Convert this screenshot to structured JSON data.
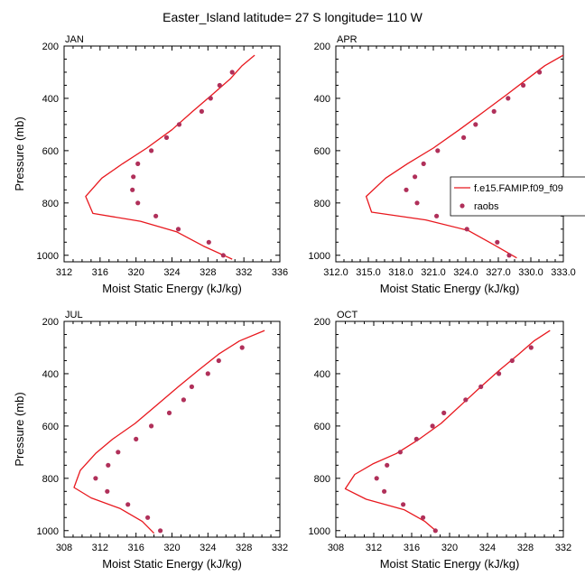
{
  "title": "Easter_Island  latitude= 27 S longitude= 110 W",
  "colors": {
    "model": "#e8181e",
    "obs": "#b0305a",
    "axis": "#000000"
  },
  "chart_data": [
    {
      "type": "line",
      "panel_label": "JAN",
      "xlabel": "Moist Static Energy (kJ/kg)",
      "ylabel": "Pressure (mb)",
      "xlim": [
        312,
        336
      ],
      "ylim": [
        200,
        1025
      ],
      "y_reversed": true,
      "xticks": [
        312,
        316,
        320,
        324,
        328,
        332,
        336
      ],
      "xtick_labels": [
        "312",
        "316",
        "320",
        "324",
        "328",
        "332",
        "336"
      ],
      "yticks": [
        200,
        400,
        600,
        800,
        1000
      ],
      "ytick_labels": [
        "200",
        "400",
        "600",
        "800",
        "1000"
      ],
      "series": [
        {
          "name": "f.e15.FAMIP.f09_f09",
          "kind": "line",
          "x": [
            333.2,
            331.8,
            330.5,
            328.5,
            326.3,
            324.0,
            321.2,
            318.5,
            316.2,
            314.4,
            315.2,
            320.5,
            324.5,
            327.5,
            330.7
          ],
          "y": [
            235,
            275,
            325,
            385,
            450,
            520,
            590,
            650,
            705,
            775,
            840,
            870,
            910,
            965,
            1015
          ]
        },
        {
          "name": "raobs",
          "kind": "scatter",
          "x": [
            330.7,
            329.3,
            328.3,
            327.3,
            324.8,
            323.4,
            321.7,
            320.2,
            319.7,
            319.6,
            320.2,
            322.2,
            324.7,
            328.1,
            329.7
          ],
          "y": [
            300,
            350,
            400,
            450,
            500,
            550,
            600,
            650,
            700,
            750,
            800,
            850,
            900,
            950,
            1000
          ]
        }
      ]
    },
    {
      "type": "line",
      "panel_label": "APR",
      "xlabel": "Moist Static Energy (kJ/kg)",
      "ylabel": "",
      "xlim": [
        312.0,
        333.0
      ],
      "ylim": [
        200,
        1025
      ],
      "y_reversed": true,
      "xticks": [
        312,
        315,
        318,
        321,
        324,
        327,
        330,
        333
      ],
      "xtick_labels": [
        "312.0",
        "315.0",
        "318.0",
        "321.0",
        "324.0",
        "327.0",
        "330.0",
        "333.0"
      ],
      "yticks": [
        200,
        400,
        600,
        800,
        1000
      ],
      "ytick_labels": [
        "200",
        "400",
        "600",
        "800",
        "1000"
      ],
      "legend": {
        "placement": "right",
        "entries": [
          "f.e15.FAMIP.f09_f09",
          "raobs"
        ]
      },
      "series": [
        {
          "name": "f.e15.FAMIP.f09_f09",
          "kind": "line",
          "x": [
            333.0,
            331.3,
            329.7,
            327.8,
            325.7,
            323.4,
            321.0,
            318.6,
            316.6,
            314.8,
            315.3,
            320.3,
            324.2,
            326.6,
            328.7
          ],
          "y": [
            235,
            275,
            325,
            385,
            450,
            520,
            590,
            650,
            705,
            775,
            835,
            865,
            905,
            960,
            1010
          ]
        },
        {
          "name": "raobs",
          "kind": "scatter",
          "x": [
            330.8,
            329.3,
            327.9,
            326.6,
            324.9,
            323.8,
            321.4,
            320.1,
            319.3,
            318.5,
            319.5,
            321.3,
            324.1,
            326.9,
            328.0
          ],
          "y": [
            300,
            350,
            400,
            450,
            500,
            550,
            600,
            650,
            700,
            750,
            800,
            850,
            900,
            950,
            1000
          ]
        }
      ]
    },
    {
      "type": "line",
      "panel_label": "JUL",
      "xlabel": "Moist Static Energy (kJ/kg)",
      "ylabel": "Pressure (mb)",
      "xlim": [
        308,
        332
      ],
      "ylim": [
        200,
        1025
      ],
      "y_reversed": true,
      "xticks": [
        308,
        312,
        316,
        320,
        324,
        328,
        332
      ],
      "xtick_labels": [
        "308",
        "312",
        "316",
        "320",
        "324",
        "328",
        "332"
      ],
      "yticks": [
        200,
        400,
        600,
        800,
        1000
      ],
      "ytick_labels": [
        "200",
        "400",
        "600",
        "800",
        "1000"
      ],
      "series": [
        {
          "name": "f.e15.FAMIP.f09_f09",
          "kind": "line",
          "x": [
            330.3,
            327.5,
            325.2,
            323.0,
            320.7,
            318.3,
            315.9,
            313.4,
            311.5,
            309.8,
            309.1,
            311.0,
            314.2,
            316.7,
            318.0
          ],
          "y": [
            235,
            275,
            325,
            385,
            450,
            520,
            590,
            650,
            705,
            770,
            835,
            875,
            915,
            965,
            1010
          ]
        },
        {
          "name": "raobs",
          "kind": "scatter",
          "x": [
            327.8,
            325.2,
            324.0,
            322.2,
            321.3,
            319.7,
            317.7,
            316.0,
            314.0,
            312.9,
            311.5,
            312.8,
            315.1,
            317.3,
            318.7
          ],
          "y": [
            300,
            350,
            400,
            450,
            500,
            550,
            600,
            650,
            700,
            750,
            800,
            850,
            900,
            950,
            1000
          ]
        }
      ]
    },
    {
      "type": "line",
      "panel_label": "OCT",
      "xlabel": "Moist Static Energy (kJ/kg)",
      "ylabel": "",
      "xlim": [
        308,
        332
      ],
      "ylim": [
        200,
        1025
      ],
      "y_reversed": true,
      "xticks": [
        308,
        312,
        316,
        320,
        324,
        328,
        332
      ],
      "xtick_labels": [
        "308",
        "312",
        "316",
        "320",
        "324",
        "328",
        "332"
      ],
      "yticks": [
        200,
        400,
        600,
        800,
        1000
      ],
      "ytick_labels": [
        "200",
        "400",
        "600",
        "800",
        "1000"
      ],
      "series": [
        {
          "name": "f.e15.FAMIP.f09_f09",
          "kind": "line",
          "x": [
            330.6,
            328.9,
            327.3,
            325.3,
            323.3,
            321.2,
            319.1,
            316.8,
            314.4,
            311.9,
            310.0,
            309.0,
            311.2,
            315.2,
            317.4,
            318.7
          ],
          "y": [
            235,
            275,
            325,
            385,
            450,
            520,
            590,
            650,
            705,
            745,
            785,
            840,
            880,
            920,
            965,
            1005
          ]
        },
        {
          "name": "raobs",
          "kind": "scatter",
          "x": [
            328.6,
            326.6,
            325.2,
            323.3,
            321.7,
            319.4,
            318.2,
            316.5,
            314.8,
            313.4,
            312.3,
            313.1,
            315.1,
            317.2,
            318.5
          ],
          "y": [
            300,
            350,
            400,
            450,
            500,
            550,
            600,
            650,
            700,
            750,
            800,
            850,
            900,
            950,
            1000
          ]
        }
      ]
    }
  ]
}
